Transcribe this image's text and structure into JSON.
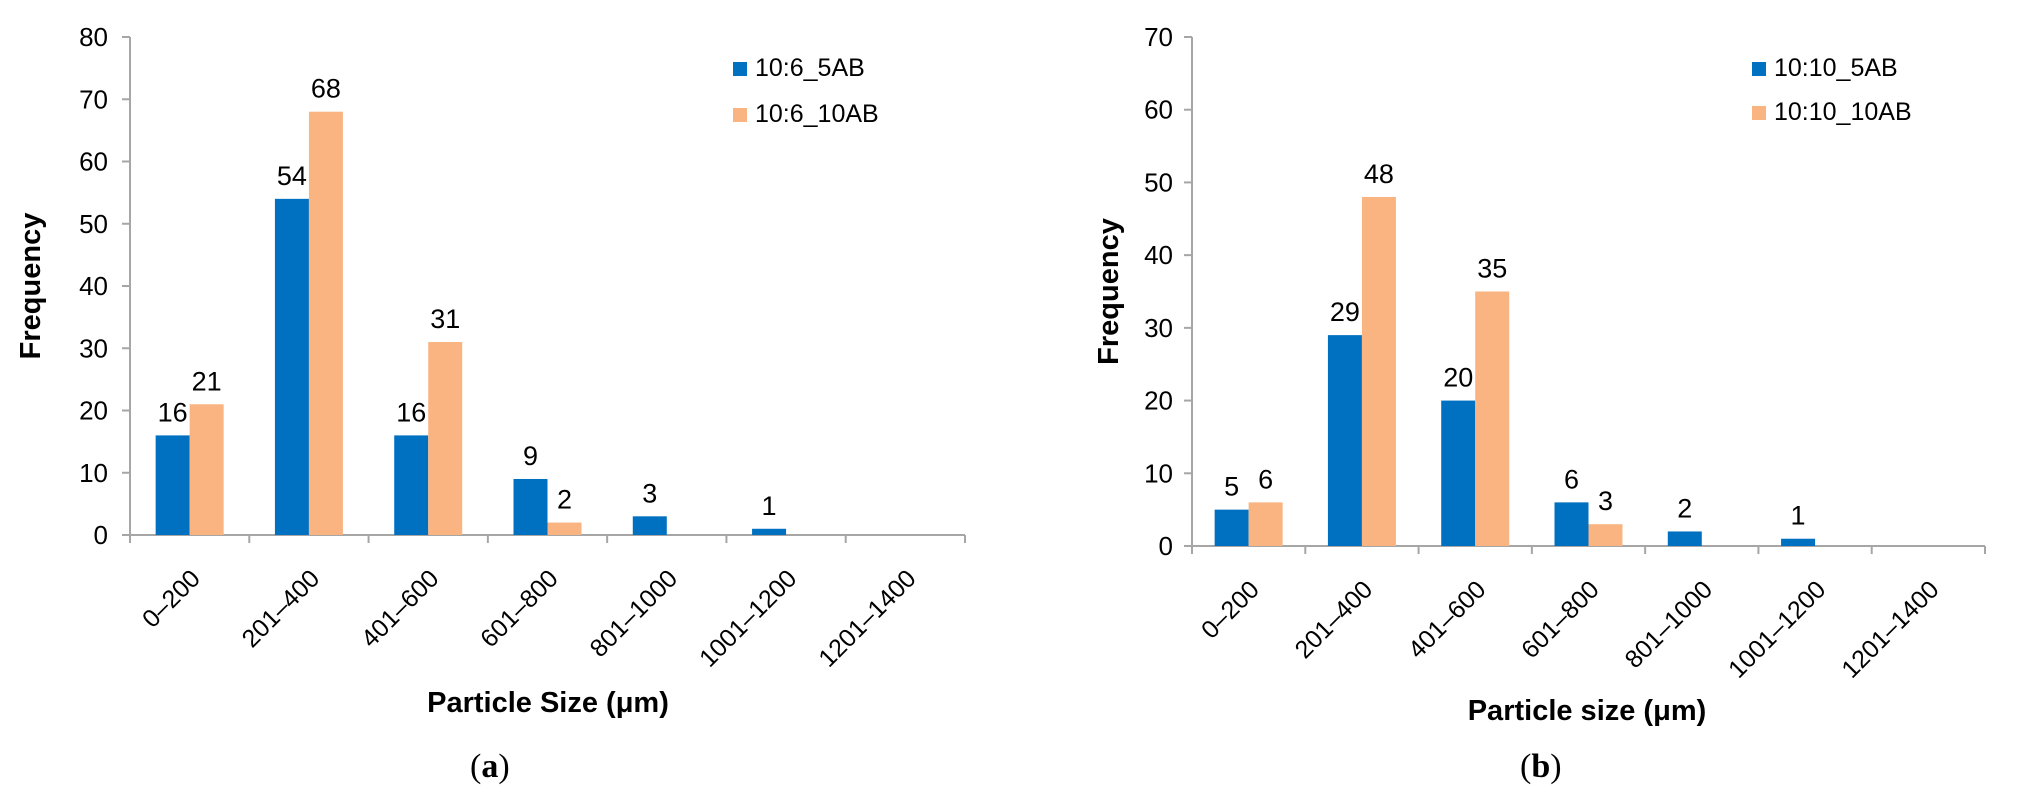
{
  "chart_data": [
    {
      "type": "bar",
      "categories": [
        "0–200",
        "201–400",
        "401–600",
        "601–800",
        "801–1000",
        "1001–1200",
        "1201–1400"
      ],
      "series": [
        {
          "name": "10:6_5AB",
          "values": [
            16,
            54,
            16,
            9,
            3,
            1,
            0
          ],
          "labels": [
            "16",
            "54",
            "16",
            "9",
            "3",
            "1",
            ""
          ]
        },
        {
          "name": "10:6_10AB",
          "values": [
            21,
            68,
            31,
            2,
            0,
            0,
            0
          ],
          "labels": [
            "21",
            "68",
            "31",
            "2",
            "",
            "",
            ""
          ]
        }
      ],
      "ylim": [
        0,
        80
      ],
      "yticks": [
        0,
        10,
        20,
        30,
        40,
        50,
        60,
        70,
        80
      ],
      "xlabel": "Particle Size (μm)",
      "ylabel": "Frequency",
      "legend": "top-right",
      "grid": false
    },
    {
      "type": "bar",
      "categories": [
        "0–200",
        "201–400",
        "401–600",
        "601–800",
        "801–1000",
        "1001–1200",
        "1201–1400"
      ],
      "series": [
        {
          "name": "10:10_5AB",
          "values": [
            5,
            29,
            20,
            6,
            2,
            1,
            0
          ],
          "labels": [
            "5",
            "29",
            "20",
            "6",
            "2",
            "1",
            ""
          ]
        },
        {
          "name": "10:10_10AB",
          "values": [
            6,
            48,
            35,
            3,
            0,
            0,
            0
          ],
          "labels": [
            "6",
            "48",
            "35",
            "3",
            "",
            "",
            ""
          ]
        }
      ],
      "ylim": [
        0,
        70
      ],
      "yticks": [
        0,
        10,
        20,
        30,
        40,
        50,
        60,
        70
      ],
      "xlabel": "Particle size (μm)",
      "ylabel": "Frequency",
      "legend": "top-right",
      "grid": false
    }
  ],
  "colors": {
    "series1": "#0070c0",
    "series2": "#f9b482",
    "axis": "#a6a6a6",
    "text": "#000000"
  },
  "captions": {
    "a": "a",
    "b": "b"
  }
}
